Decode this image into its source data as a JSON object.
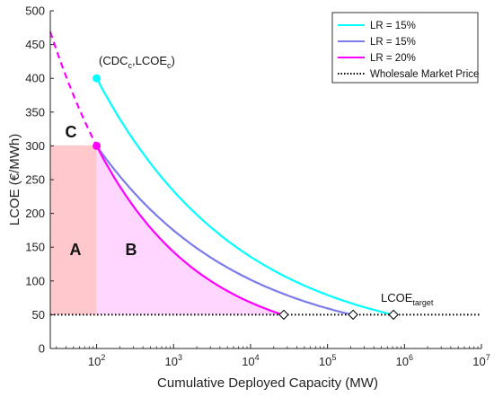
{
  "chart_data": {
    "type": "line",
    "title": "",
    "xlabel": "Cumulative Deployed Capacity (MW)",
    "ylabel": "LCOE (€/MWh)",
    "xscale": "log",
    "xlim": [
      25,
      10000000
    ],
    "ylim": [
      0,
      500
    ],
    "x_ticks": [
      {
        "value": 100,
        "base": "10",
        "exp": "2"
      },
      {
        "value": 1000,
        "base": "10",
        "exp": "3"
      },
      {
        "value": 10000,
        "base": "10",
        "exp": "4"
      },
      {
        "value": 100000,
        "base": "10",
        "exp": "5"
      },
      {
        "value": 1000000,
        "base": "10",
        "exp": "6"
      },
      {
        "value": 10000000,
        "base": "10",
        "exp": "7"
      }
    ],
    "y_ticks": [
      0,
      50,
      100,
      150,
      200,
      250,
      300,
      350,
      400,
      450,
      500
    ],
    "legend_position": "top-right",
    "grid": false,
    "series": [
      {
        "name": "LR = 15%",
        "color": "#00ffff",
        "start": [
          100,
          400
        ],
        "end": [
          720000,
          50
        ],
        "exponent": 0.2345,
        "marker_end": "diamond"
      },
      {
        "name": "LR = 15%",
        "color": "#7b7bea",
        "start": [
          100,
          300
        ],
        "end": [
          215000,
          50
        ],
        "exponent": 0.2345,
        "marker_end": "diamond"
      },
      {
        "name": "LR = 20%",
        "color": "#ff00ff",
        "start": [
          100,
          300
        ],
        "end": [
          27000,
          50
        ],
        "exponent": 0.3219,
        "marker_end": "diamond"
      },
      {
        "name": "Wholesale Market Price",
        "color": "#000000",
        "style": "dotted",
        "constant": 50
      }
    ],
    "extrapolation": {
      "color": "#ff00ff",
      "style": "dashed",
      "from": [
        25,
        469
      ],
      "to": [
        100,
        300
      ]
    },
    "points": [
      {
        "x": 100,
        "y": 400,
        "color": "#00ffff"
      },
      {
        "x": 100,
        "y": 300,
        "color": "#ff00ff"
      }
    ],
    "regions": [
      {
        "label": "A",
        "x": [
          25,
          100
        ],
        "y": [
          50,
          300
        ],
        "color": "#ffc8cd"
      },
      {
        "label": "B",
        "fill_to_series": 2,
        "y_base": 50,
        "color": "#ffd6ff"
      }
    ],
    "annotations": {
      "cdc_point": {
        "open": "(CDC",
        "sub1": "c",
        "mid": ",LCOE",
        "sub2": "c",
        "close": ")"
      },
      "target": {
        "main": "LCOE",
        "sub": "target"
      },
      "region_c": "C"
    }
  }
}
